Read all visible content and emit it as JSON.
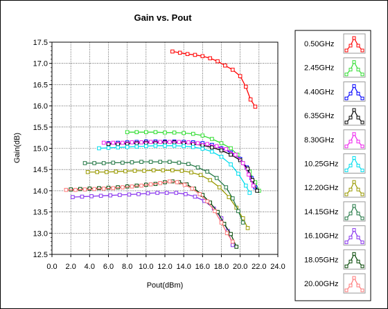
{
  "chart_data": {
    "type": "line",
    "title": "Gain vs. Pout",
    "xlabel": "Pout(dBm)",
    "ylabel": "Gain(dB)",
    "xlim": [
      0,
      24
    ],
    "ylim": [
      12.5,
      17.5
    ],
    "x_ticks": [
      "0.0",
      "2.0",
      "4.0",
      "6.0",
      "8.0",
      "10.0",
      "12.0",
      "14.0",
      "16.0",
      "18.0",
      "20.0",
      "22.0",
      "24.0"
    ],
    "y_ticks": [
      "17.5",
      "17.0",
      "16.5",
      "16.0",
      "15.5",
      "15.0",
      "14.5",
      "14.0",
      "13.5",
      "13.0",
      "12.5"
    ],
    "grid": true,
    "legend_position": "right",
    "series": [
      {
        "name": "0.50GHz",
        "color": "#ff0000",
        "points": [
          [
            12.8,
            17.28
          ],
          [
            13.6,
            17.25
          ],
          [
            14.4,
            17.22
          ],
          [
            15.2,
            17.2
          ],
          [
            16.0,
            17.17
          ],
          [
            16.8,
            17.12
          ],
          [
            17.6,
            17.05
          ],
          [
            18.4,
            16.95
          ],
          [
            19.2,
            16.85
          ],
          [
            20.0,
            16.7
          ],
          [
            20.6,
            16.45
          ],
          [
            21.1,
            16.15
          ],
          [
            21.6,
            15.98
          ]
        ]
      },
      {
        "name": "2.45GHz",
        "color": "#33dd33",
        "points": [
          [
            8.0,
            15.38
          ],
          [
            9.0,
            15.38
          ],
          [
            10.0,
            15.38
          ],
          [
            11.0,
            15.38
          ],
          [
            12.0,
            15.37
          ],
          [
            13.0,
            15.37
          ],
          [
            14.0,
            15.36
          ],
          [
            15.0,
            15.34
          ],
          [
            16.0,
            15.3
          ],
          [
            17.0,
            15.22
          ],
          [
            18.0,
            15.12
          ],
          [
            19.0,
            15.0
          ],
          [
            19.7,
            14.85
          ],
          [
            20.3,
            14.65
          ],
          [
            21.0,
            14.45
          ],
          [
            21.6,
            14.2
          ],
          [
            22.0,
            14.0
          ]
        ]
      },
      {
        "name": "4.40GHz",
        "color": "#0000ff",
        "points": [
          [
            6.0,
            15.12
          ],
          [
            7.0,
            15.13
          ],
          [
            8.0,
            15.14
          ],
          [
            9.0,
            15.15
          ],
          [
            10.0,
            15.16
          ],
          [
            11.0,
            15.16
          ],
          [
            12.0,
            15.16
          ],
          [
            13.0,
            15.16
          ],
          [
            14.0,
            15.15
          ],
          [
            15.0,
            15.14
          ],
          [
            16.0,
            15.12
          ],
          [
            17.0,
            15.08
          ],
          [
            18.0,
            15.0
          ],
          [
            19.0,
            14.9
          ],
          [
            20.0,
            14.75
          ],
          [
            20.7,
            14.55
          ],
          [
            21.2,
            14.3
          ],
          [
            21.6,
            14.08
          ]
        ]
      },
      {
        "name": "6.35GHz",
        "color": "#000000",
        "points": [
          [
            6.0,
            15.1
          ],
          [
            7.0,
            15.1
          ],
          [
            8.0,
            15.11
          ],
          [
            9.0,
            15.12
          ],
          [
            10.0,
            15.13
          ],
          [
            11.0,
            15.13
          ],
          [
            12.0,
            15.14
          ],
          [
            13.0,
            15.14
          ],
          [
            14.0,
            15.12
          ],
          [
            15.0,
            15.1
          ],
          [
            16.0,
            15.07
          ],
          [
            17.0,
            15.02
          ],
          [
            18.0,
            14.95
          ],
          [
            19.0,
            14.85
          ],
          [
            20.0,
            14.72
          ],
          [
            20.8,
            14.52
          ],
          [
            21.3,
            14.25
          ],
          [
            21.8,
            14.0
          ]
        ]
      },
      {
        "name": "8.30GHz",
        "color": "#ee22ee",
        "points": [
          [
            5.5,
            15.13
          ],
          [
            6.5,
            15.13
          ],
          [
            7.5,
            15.13
          ],
          [
            8.5,
            15.14
          ],
          [
            9.5,
            15.14
          ],
          [
            10.5,
            15.15
          ],
          [
            11.5,
            15.15
          ],
          [
            12.5,
            15.15
          ],
          [
            13.5,
            15.15
          ],
          [
            14.5,
            15.14
          ],
          [
            15.5,
            15.12
          ],
          [
            16.5,
            15.1
          ],
          [
            17.5,
            15.05
          ],
          [
            18.5,
            14.98
          ],
          [
            19.5,
            14.85
          ],
          [
            20.3,
            14.65
          ],
          [
            20.9,
            14.38
          ],
          [
            21.4,
            14.12
          ]
        ]
      },
      {
        "name": "10.25GHz",
        "color": "#00ddee",
        "points": [
          [
            5.0,
            15.0
          ],
          [
            6.0,
            15.01
          ],
          [
            7.0,
            15.02
          ],
          [
            8.0,
            15.03
          ],
          [
            9.0,
            15.04
          ],
          [
            10.0,
            15.05
          ],
          [
            11.0,
            15.06
          ],
          [
            12.0,
            15.06
          ],
          [
            13.0,
            15.06
          ],
          [
            14.0,
            15.05
          ],
          [
            15.0,
            15.03
          ],
          [
            16.0,
            14.99
          ],
          [
            17.0,
            14.92
          ],
          [
            18.0,
            14.8
          ],
          [
            19.0,
            14.62
          ],
          [
            19.8,
            14.4
          ],
          [
            20.6,
            14.12
          ],
          [
            21.0,
            13.95
          ]
        ]
      },
      {
        "name": "12.20GHz",
        "color": "#999900",
        "points": [
          [
            3.8,
            14.44
          ],
          [
            4.8,
            14.44
          ],
          [
            5.8,
            14.44
          ],
          [
            6.8,
            14.45
          ],
          [
            7.8,
            14.46
          ],
          [
            8.8,
            14.47
          ],
          [
            9.8,
            14.47
          ],
          [
            10.8,
            14.48
          ],
          [
            11.8,
            14.48
          ],
          [
            12.8,
            14.48
          ],
          [
            13.8,
            14.47
          ],
          [
            14.8,
            14.43
          ],
          [
            15.8,
            14.37
          ],
          [
            16.8,
            14.25
          ],
          [
            17.8,
            14.08
          ],
          [
            18.8,
            13.85
          ],
          [
            19.6,
            13.6
          ],
          [
            20.3,
            13.35
          ],
          [
            20.8,
            13.12
          ]
        ]
      },
      {
        "name": "14.15GHz",
        "color": "#227744",
        "points": [
          [
            3.5,
            14.65
          ],
          [
            4.5,
            14.65
          ],
          [
            5.5,
            14.65
          ],
          [
            6.5,
            14.66
          ],
          [
            7.5,
            14.66
          ],
          [
            8.5,
            14.67
          ],
          [
            9.5,
            14.68
          ],
          [
            10.5,
            14.68
          ],
          [
            11.5,
            14.68
          ],
          [
            12.5,
            14.68
          ],
          [
            13.5,
            14.66
          ],
          [
            14.5,
            14.63
          ],
          [
            15.5,
            14.55
          ],
          [
            16.5,
            14.45
          ],
          [
            17.5,
            14.3
          ],
          [
            18.5,
            14.08
          ],
          [
            19.2,
            13.82
          ],
          [
            19.8,
            13.52
          ],
          [
            20.3,
            13.25
          ]
        ]
      },
      {
        "name": "16.10GHz",
        "color": "#8833ee",
        "points": [
          [
            2.2,
            13.85
          ],
          [
            3.2,
            13.86
          ],
          [
            4.2,
            13.87
          ],
          [
            5.2,
            13.88
          ],
          [
            6.2,
            13.89
          ],
          [
            7.2,
            13.9
          ],
          [
            8.2,
            13.91
          ],
          [
            9.2,
            13.92
          ],
          [
            10.2,
            13.94
          ],
          [
            11.2,
            13.95
          ],
          [
            12.2,
            13.95
          ],
          [
            13.2,
            13.95
          ],
          [
            14.2,
            13.92
          ],
          [
            15.2,
            13.86
          ],
          [
            16.2,
            13.76
          ],
          [
            17.2,
            13.58
          ],
          [
            18.0,
            13.35
          ],
          [
            18.7,
            13.05
          ],
          [
            19.2,
            12.72
          ]
        ]
      },
      {
        "name": "18.05GHz",
        "color": "#004400",
        "points": [
          [
            2.0,
            14.03
          ],
          [
            3.0,
            14.04
          ],
          [
            4.0,
            14.05
          ],
          [
            5.0,
            14.06
          ],
          [
            6.0,
            14.07
          ],
          [
            7.0,
            14.08
          ],
          [
            8.0,
            14.1
          ],
          [
            9.0,
            14.12
          ],
          [
            10.0,
            14.14
          ],
          [
            11.0,
            14.16
          ],
          [
            12.0,
            14.2
          ],
          [
            12.8,
            14.22
          ],
          [
            13.5,
            14.2
          ],
          [
            14.3,
            14.15
          ],
          [
            15.1,
            14.05
          ],
          [
            16.0,
            13.9
          ],
          [
            16.8,
            13.72
          ],
          [
            17.6,
            13.5
          ],
          [
            18.3,
            13.22
          ],
          [
            19.0,
            12.98
          ],
          [
            19.6,
            12.68
          ]
        ]
      },
      {
        "name": "20.00GHz",
        "color": "#ff7777",
        "points": [
          [
            1.5,
            14.02
          ],
          [
            2.5,
            14.02
          ],
          [
            3.5,
            14.03
          ],
          [
            4.5,
            14.04
          ],
          [
            5.5,
            14.05
          ],
          [
            6.5,
            14.06
          ],
          [
            7.5,
            14.08
          ],
          [
            8.5,
            14.1
          ],
          [
            9.5,
            14.12
          ],
          [
            10.5,
            14.15
          ],
          [
            11.5,
            14.18
          ],
          [
            12.5,
            14.22
          ],
          [
            13.3,
            14.2
          ],
          [
            14.1,
            14.14
          ],
          [
            14.9,
            14.05
          ],
          [
            15.7,
            13.92
          ],
          [
            16.5,
            13.75
          ],
          [
            17.3,
            13.52
          ],
          [
            18.0,
            13.25
          ],
          [
            18.6,
            13.0
          ],
          [
            19.2,
            12.8
          ]
        ]
      }
    ]
  }
}
